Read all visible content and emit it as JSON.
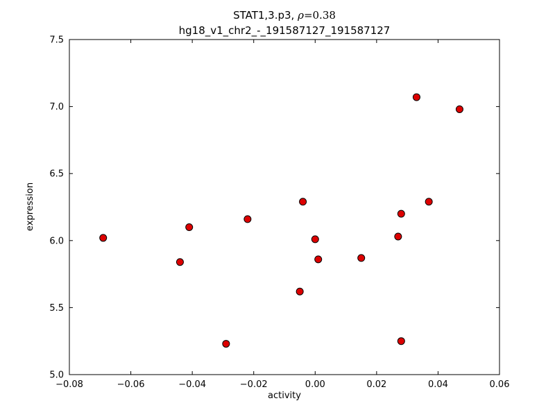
{
  "chart_data": {
    "type": "scatter",
    "title_prefix": "STAT1,3.p3, ",
    "title_rho": "ρ",
    "title_value": "=0.38",
    "title_line2": "hg18_v1_chr2_-_191587127_191587127",
    "xlabel": "activity",
    "ylabel": "expression",
    "xlim": [
      -0.08,
      0.06
    ],
    "ylim": [
      5.0,
      7.5
    ],
    "xticks": [
      -0.08,
      -0.06,
      -0.04,
      -0.02,
      0.0,
      0.02,
      0.04,
      0.06
    ],
    "xtick_labels": [
      "−0.08",
      "−0.06",
      "−0.04",
      "−0.02",
      "0.00",
      "0.02",
      "0.04",
      "0.06"
    ],
    "yticks": [
      5.0,
      5.5,
      6.0,
      6.5,
      7.0,
      7.5
    ],
    "ytick_labels": [
      "5.0",
      "5.5",
      "6.0",
      "6.5",
      "7.0",
      "7.5"
    ],
    "grid": false,
    "legend": "none",
    "marker": {
      "shape": "circle",
      "fill_color": "#dd0000",
      "edge_color": "#000000",
      "radius": 5
    },
    "points": [
      [
        -0.069,
        6.02
      ],
      [
        -0.044,
        5.84
      ],
      [
        -0.041,
        6.1
      ],
      [
        -0.029,
        5.23
      ],
      [
        -0.022,
        6.16
      ],
      [
        -0.005,
        5.62
      ],
      [
        -0.004,
        6.29
      ],
      [
        0.0,
        6.01
      ],
      [
        0.001,
        5.86
      ],
      [
        0.015,
        5.87
      ],
      [
        0.027,
        6.03
      ],
      [
        0.028,
        5.25
      ],
      [
        0.028,
        6.2
      ],
      [
        0.033,
        7.07
      ],
      [
        0.037,
        6.29
      ],
      [
        0.047,
        6.98
      ]
    ]
  }
}
